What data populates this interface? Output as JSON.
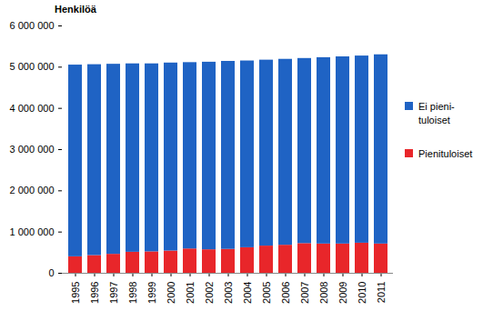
{
  "chart_data": {
    "type": "bar",
    "stacked": true,
    "y_label": "Henkilöä",
    "categories": [
      "1995",
      "1996",
      "1997",
      "1998",
      "1999",
      "2000",
      "2001",
      "2002",
      "2003",
      "2004",
      "2005",
      "2006",
      "2007",
      "2008",
      "2009",
      "2010",
      "2011"
    ],
    "series": [
      {
        "name": "Pienituloiset",
        "color": "#e8262a",
        "values": [
          400000,
          430000,
          460000,
          510000,
          520000,
          540000,
          590000,
          570000,
          580000,
          620000,
          660000,
          680000,
          720000,
          710000,
          710000,
          730000,
          710000
        ]
      },
      {
        "name": "Ei pieni-tuloiset",
        "color": "#1f63c4",
        "values": [
          4650000,
          4630000,
          4610000,
          4570000,
          4560000,
          4560000,
          4520000,
          4550000,
          4560000,
          4530000,
          4510000,
          4510000,
          4490000,
          4520000,
          4540000,
          4540000,
          4590000
        ]
      }
    ],
    "ylim": [
      0,
      6000000
    ],
    "yticks": [
      0,
      {
        "value": 1000000,
        "label": "1 000 000"
      },
      {
        "value": 2000000,
        "label": "2 000 000"
      },
      {
        "value": 3000000,
        "label": "3 000 000"
      },
      {
        "value": 4000000,
        "label": "4 000 000"
      },
      {
        "value": 5000000,
        "label": "5 000 000"
      },
      {
        "value": 6000000,
        "label": "6 000 000"
      }
    ],
    "legend": "right",
    "grid": false
  }
}
